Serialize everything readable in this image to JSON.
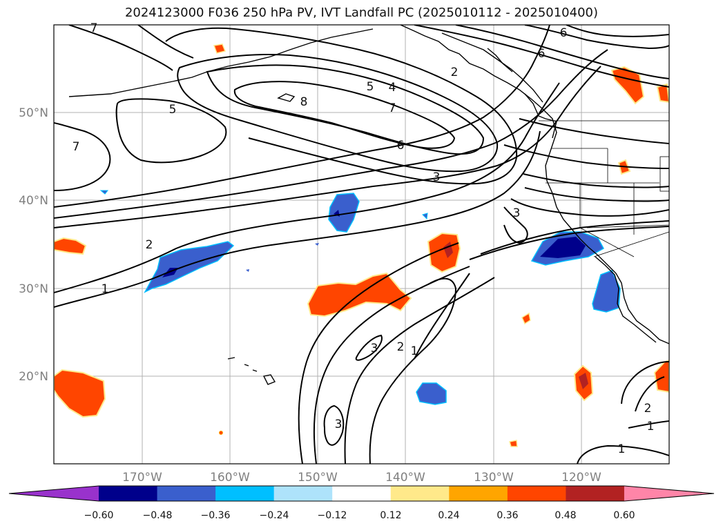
{
  "title": "2024123000 F036 250 hPa PV, IVT Landfall PC (2025010112 - 2025010400)",
  "lat_ticks": [
    "50°N",
    "40°N",
    "30°N",
    "20°N"
  ],
  "lon_ticks": [
    "170°W",
    "160°W",
    "150°W",
    "140°W",
    "130°W",
    "120°W"
  ],
  "colorbar": {
    "extend": "both",
    "ticks": [
      "−0.60",
      "−0.48",
      "−0.36",
      "−0.24",
      "−0.12",
      "0.12",
      "0.24",
      "0.36",
      "0.48",
      "0.60"
    ],
    "colors": [
      "#9932cc",
      "#00008b",
      "#3a5fcd",
      "#00bfff",
      "#aee3fb",
      "#ffffff",
      "#ffe98a",
      "#ffa500",
      "#ff4500",
      "#b22222",
      "#ff85a8"
    ]
  },
  "contour_labels": [
    "7",
    "6",
    "6",
    "2",
    "5",
    "4",
    "7",
    "8",
    "5",
    "7",
    "6",
    "3",
    "3",
    "2",
    "1",
    "3",
    "2",
    "1",
    "3",
    "2",
    "1",
    "1"
  ]
}
